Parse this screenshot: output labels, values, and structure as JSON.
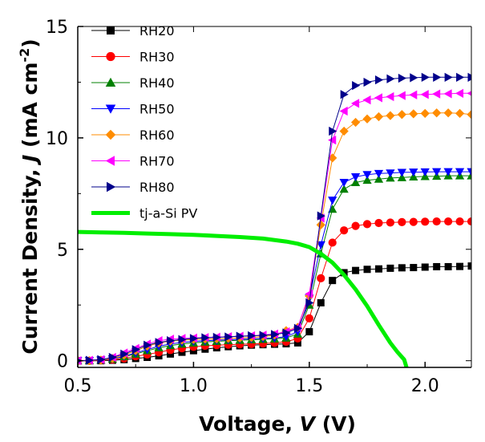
{
  "chart_data": {
    "type": "line",
    "xlabel": {
      "prefix": "Voltage, ",
      "symbol": "V",
      "suffix": " (V)"
    },
    "ylabel": {
      "prefix": "Current Density, ",
      "symbol": "J",
      "suffix": " (mA cm",
      "exponent": "-2",
      "close": ")"
    },
    "xlim": [
      0.5,
      2.2
    ],
    "ylim": [
      -0.3,
      15
    ],
    "xticks": [
      0.5,
      1.0,
      1.5,
      2.0
    ],
    "xtick_labels": [
      "0.5",
      "1.0",
      "1.5",
      "2.0"
    ],
    "yticks": [
      0,
      5,
      10,
      15
    ],
    "ytick_labels": [
      "0",
      "5",
      "10",
      "15"
    ],
    "grid": false,
    "legend_position": "upper-left",
    "series": [
      {
        "name": "RH20",
        "color": "#000000",
        "marker": "square",
        "x": [
          0.5,
          0.55,
          0.6,
          0.65,
          0.7,
          0.75,
          0.8,
          0.85,
          0.9,
          0.95,
          1.0,
          1.05,
          1.1,
          1.15,
          1.2,
          1.25,
          1.3,
          1.35,
          1.4,
          1.45,
          1.5,
          1.55,
          1.6,
          1.65,
          1.7,
          1.75,
          1.8,
          1.85,
          1.9,
          1.95,
          2.0,
          2.05,
          2.1,
          2.15,
          2.2
        ],
        "y": [
          0.0,
          0.0,
          0.0,
          0.02,
          0.05,
          0.1,
          0.15,
          0.22,
          0.3,
          0.38,
          0.45,
          0.52,
          0.58,
          0.63,
          0.67,
          0.7,
          0.72,
          0.74,
          0.76,
          0.8,
          1.3,
          2.6,
          3.6,
          3.95,
          4.05,
          4.1,
          4.12,
          4.15,
          4.17,
          4.18,
          4.2,
          4.22,
          4.22,
          4.23,
          4.25
        ]
      },
      {
        "name": "RH30",
        "color": "#ff0000",
        "marker": "circle",
        "x": [
          0.5,
          0.55,
          0.6,
          0.65,
          0.7,
          0.75,
          0.8,
          0.85,
          0.9,
          0.95,
          1.0,
          1.05,
          1.1,
          1.15,
          1.2,
          1.25,
          1.3,
          1.35,
          1.4,
          1.45,
          1.5,
          1.55,
          1.6,
          1.65,
          1.7,
          1.75,
          1.8,
          1.85,
          1.9,
          1.95,
          2.0,
          2.05,
          2.1,
          2.15,
          2.2
        ],
        "y": [
          0.0,
          0.0,
          0.02,
          0.05,
          0.1,
          0.2,
          0.28,
          0.38,
          0.48,
          0.56,
          0.62,
          0.67,
          0.7,
          0.72,
          0.74,
          0.75,
          0.77,
          0.8,
          0.85,
          1.0,
          1.9,
          3.7,
          5.3,
          5.85,
          6.05,
          6.13,
          6.18,
          6.2,
          6.22,
          6.23,
          6.24,
          6.25,
          6.25,
          6.25,
          6.25
        ]
      },
      {
        "name": "RH40",
        "color": "#008000",
        "marker": "triangle-up",
        "x": [
          0.5,
          0.55,
          0.6,
          0.65,
          0.7,
          0.75,
          0.8,
          0.85,
          0.9,
          0.95,
          1.0,
          1.05,
          1.1,
          1.15,
          1.2,
          1.25,
          1.3,
          1.35,
          1.4,
          1.45,
          1.5,
          1.55,
          1.6,
          1.65,
          1.7,
          1.75,
          1.8,
          1.85,
          1.9,
          1.95,
          2.0,
          2.05,
          2.1,
          2.15,
          2.2
        ],
        "y": [
          0.0,
          0.0,
          0.03,
          0.08,
          0.18,
          0.3,
          0.45,
          0.58,
          0.68,
          0.75,
          0.8,
          0.84,
          0.87,
          0.9,
          0.92,
          0.94,
          0.96,
          0.98,
          1.02,
          1.2,
          2.5,
          4.8,
          6.8,
          7.7,
          8.0,
          8.1,
          8.15,
          8.2,
          8.22,
          8.25,
          8.27,
          8.28,
          8.3,
          8.3,
          8.3
        ]
      },
      {
        "name": "RH50",
        "color": "#0000ff",
        "marker": "triangle-down",
        "x": [
          0.5,
          0.55,
          0.6,
          0.65,
          0.7,
          0.75,
          0.8,
          0.85,
          0.9,
          0.95,
          1.0,
          1.05,
          1.1,
          1.15,
          1.2,
          1.25,
          1.3,
          1.35,
          1.4,
          1.45,
          1.5,
          1.55,
          1.6,
          1.65,
          1.7,
          1.75,
          1.8,
          1.85,
          1.9,
          1.95,
          2.0,
          2.05,
          2.1,
          2.15,
          2.2
        ],
        "y": [
          0.0,
          0.0,
          0.03,
          0.08,
          0.2,
          0.35,
          0.5,
          0.65,
          0.75,
          0.82,
          0.87,
          0.9,
          0.92,
          0.94,
          0.96,
          0.98,
          1.0,
          1.02,
          1.08,
          1.3,
          2.8,
          5.2,
          7.2,
          8.0,
          8.25,
          8.35,
          8.4,
          8.42,
          8.45,
          8.46,
          8.47,
          8.48,
          8.48,
          8.48,
          8.48
        ]
      },
      {
        "name": "RH60",
        "color": "#ff8c00",
        "marker": "diamond",
        "x": [
          0.5,
          0.55,
          0.6,
          0.65,
          0.7,
          0.75,
          0.8,
          0.85,
          0.9,
          0.95,
          1.0,
          1.05,
          1.1,
          1.15,
          1.2,
          1.25,
          1.3,
          1.35,
          1.4,
          1.45,
          1.5,
          1.55,
          1.6,
          1.65,
          1.7,
          1.75,
          1.8,
          1.85,
          1.9,
          1.95,
          2.0,
          2.05,
          2.1,
          2.15,
          2.2
        ],
        "y": [
          0.0,
          0.0,
          0.03,
          0.1,
          0.25,
          0.45,
          0.65,
          0.8,
          0.88,
          0.92,
          0.95,
          0.97,
          0.98,
          1.0,
          1.02,
          1.04,
          1.08,
          1.15,
          1.35,
          1.5,
          2.9,
          6.1,
          9.1,
          10.3,
          10.7,
          10.85,
          10.95,
          11.0,
          11.05,
          11.08,
          11.1,
          11.12,
          11.12,
          11.1,
          11.05
        ]
      },
      {
        "name": "RH70",
        "color": "#ff00ff",
        "marker": "triangle-left",
        "x": [
          0.5,
          0.55,
          0.6,
          0.65,
          0.7,
          0.75,
          0.8,
          0.85,
          0.9,
          0.95,
          1.0,
          1.05,
          1.1,
          1.15,
          1.2,
          1.25,
          1.3,
          1.35,
          1.4,
          1.45,
          1.5,
          1.55,
          1.6,
          1.65,
          1.7,
          1.75,
          1.8,
          1.85,
          1.9,
          1.95,
          2.0,
          2.05,
          2.1,
          2.15,
          2.2
        ],
        "y": [
          0.0,
          0.02,
          0.05,
          0.15,
          0.35,
          0.55,
          0.75,
          0.9,
          0.97,
          1.0,
          1.02,
          1.04,
          1.06,
          1.08,
          1.1,
          1.12,
          1.15,
          1.2,
          1.3,
          1.5,
          3.0,
          6.4,
          9.9,
          11.2,
          11.55,
          11.7,
          11.8,
          11.85,
          11.9,
          11.93,
          11.95,
          11.97,
          11.98,
          12.0,
          12.0
        ]
      },
      {
        "name": "RH80",
        "color": "#00008b",
        "marker": "triangle-right",
        "x": [
          0.5,
          0.55,
          0.6,
          0.65,
          0.7,
          0.75,
          0.8,
          0.85,
          0.9,
          0.95,
          1.0,
          1.05,
          1.1,
          1.15,
          1.2,
          1.25,
          1.3,
          1.35,
          1.4,
          1.45,
          1.5,
          1.55,
          1.6,
          1.65,
          1.7,
          1.75,
          1.8,
          1.85,
          1.9,
          1.95,
          2.0,
          2.05,
          2.1,
          2.15,
          2.2
        ],
        "y": [
          0.0,
          0.02,
          0.05,
          0.15,
          0.3,
          0.5,
          0.7,
          0.82,
          0.9,
          0.95,
          1.0,
          1.03,
          1.05,
          1.07,
          1.1,
          1.12,
          1.14,
          1.18,
          1.25,
          1.45,
          2.6,
          6.5,
          10.3,
          11.95,
          12.35,
          12.5,
          12.6,
          12.65,
          12.68,
          12.7,
          12.72,
          12.72,
          12.72,
          12.72,
          12.72
        ]
      },
      {
        "name": "tj-a-Si PV",
        "color": "#00ee00",
        "marker": "none",
        "line_width": 5,
        "x": [
          0.5,
          0.6,
          0.7,
          0.8,
          0.9,
          1.0,
          1.1,
          1.2,
          1.3,
          1.4,
          1.45,
          1.5,
          1.55,
          1.6,
          1.65,
          1.7,
          1.75,
          1.8,
          1.85,
          1.88,
          1.91,
          1.92
        ],
        "y": [
          5.78,
          5.76,
          5.74,
          5.71,
          5.68,
          5.65,
          5.6,
          5.55,
          5.48,
          5.35,
          5.25,
          5.1,
          4.8,
          4.4,
          3.85,
          3.2,
          2.45,
          1.6,
          0.8,
          0.4,
          0.05,
          -0.3
        ]
      }
    ]
  }
}
